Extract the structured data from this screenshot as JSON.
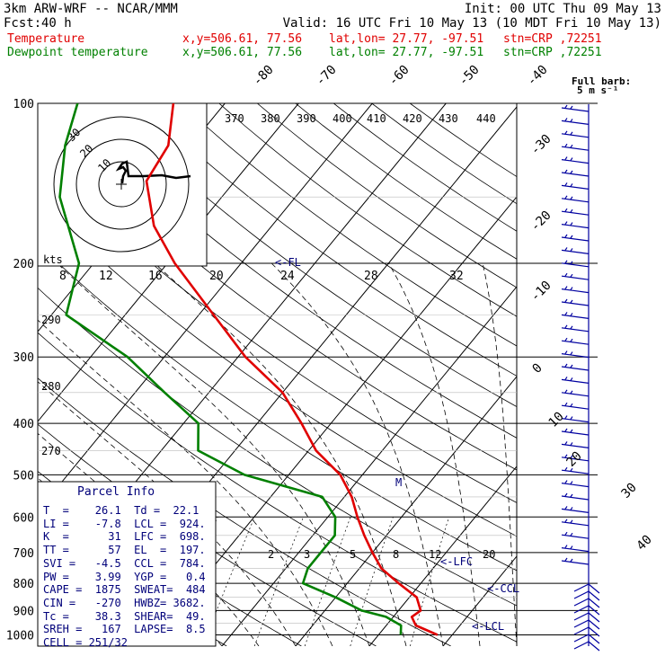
{
  "header": {
    "model": "3km ARW-WRF -- NCAR/MMM",
    "init": "Init: 00 UTC Thu 09 May 13",
    "fcst_label": "Fcst:",
    "fcst_value": "40 h",
    "valid": "Valid: 16 UTC Fri 10 May 13 (10 MDT Fri 10 May 13)",
    "temp_label": "Temperature",
    "dew_label": "Dewpoint temperature",
    "xy": "x,y=506.61, 77.56",
    "latlon": "lat,lon= 27.77, -97.51",
    "stn": "stn=CRP ,72251"
  },
  "barb_legend": {
    "title": "Full barb:",
    "units": "5 m s⁻¹"
  },
  "hodograph": {
    "kts_label": "kts",
    "rings": [
      "30",
      "20",
      "10"
    ],
    "speed_ticks": [
      "8",
      "12",
      "16",
      "20",
      "24",
      "28",
      "32"
    ]
  },
  "parcel_info": {
    "title": "Parcel Info",
    "rows": [
      "T  =    26.1  Td =  22.1",
      "LI =    -7.8  LCL =  924.",
      "K  =      31  LFC =  698.",
      "TT =      57  EL  =  197.",
      "SVI =   -4.5  CCL =  784.",
      "PW =    3.99  YGP =   0.4",
      "CAPE =  1875  SWEAT=  484",
      "CIN =   -270  HWBZ= 3682.",
      "Tc =    38.3  SHEAR=  49.",
      "SREH =   167  LAPSE=  8.5",
      "CELL = 251/32"
    ]
  },
  "level_markers": {
    "lfc": "<-LFC",
    "ccl": "<-CCL",
    "lcl": "<-LCL",
    "fl": "<-FL",
    "m": "M"
  },
  "mixing_ratio_labels": [
    "2",
    "3",
    "5",
    "8",
    "12",
    "20"
  ],
  "theta_labels": [
    "370",
    "380",
    "390",
    "400",
    "410",
    "420",
    "430",
    "440"
  ],
  "theta_left_labels": [
    "290",
    "280",
    "270"
  ],
  "chart_data": {
    "type": "line",
    "title": "",
    "xlabel": "",
    "ylabel": "",
    "y_scale": "log-pressure",
    "pressure_levels": [
      100,
      200,
      300,
      400,
      500,
      600,
      700,
      800,
      900,
      1000
    ],
    "pressure_labels": [
      "100",
      "200",
      "300",
      "400",
      "500",
      "600",
      "700",
      "800",
      "900",
      "1000"
    ],
    "temperature_labels": [
      "-80",
      "-70",
      "-60",
      "-50",
      "-40",
      "-30",
      "-20",
      "-10",
      "0",
      "10",
      "20",
      "30",
      "40"
    ],
    "xlim_temp_at_1000": [
      -25,
      40
    ],
    "series": [
      {
        "name": "Temperature",
        "color": "#e00000",
        "points": [
          [
            1000,
            28
          ],
          [
            960,
            24
          ],
          [
            925,
            22.5
          ],
          [
            900,
            23
          ],
          [
            850,
            21
          ],
          [
            800,
            17
          ],
          [
            750,
            13
          ],
          [
            700,
            10
          ],
          [
            650,
            7
          ],
          [
            600,
            4
          ],
          [
            550,
            1
          ],
          [
            500,
            -3
          ],
          [
            450,
            -9
          ],
          [
            400,
            -14
          ],
          [
            350,
            -20
          ],
          [
            300,
            -29
          ],
          [
            250,
            -38
          ],
          [
            200,
            -49
          ],
          [
            170,
            -56
          ],
          [
            140,
            -62
          ],
          [
            120,
            -63
          ],
          [
            100,
            -67
          ]
        ]
      },
      {
        "name": "Dewpoint temperature",
        "color": "#008000",
        "points": [
          [
            1000,
            23
          ],
          [
            960,
            22
          ],
          [
            925,
            19
          ],
          [
            900,
            15
          ],
          [
            850,
            10
          ],
          [
            800,
            4
          ],
          [
            750,
            3
          ],
          [
            700,
            3
          ],
          [
            650,
            3
          ],
          [
            600,
            1
          ],
          [
            550,
            -3
          ],
          [
            500,
            -16
          ],
          [
            450,
            -25
          ],
          [
            400,
            -28
          ],
          [
            350,
            -36
          ],
          [
            300,
            -45
          ],
          [
            250,
            -58
          ],
          [
            200,
            -62
          ],
          [
            150,
            -72
          ],
          [
            120,
            -77
          ],
          [
            100,
            -80
          ]
        ]
      }
    ],
    "grid": true,
    "legend": "top-left"
  }
}
